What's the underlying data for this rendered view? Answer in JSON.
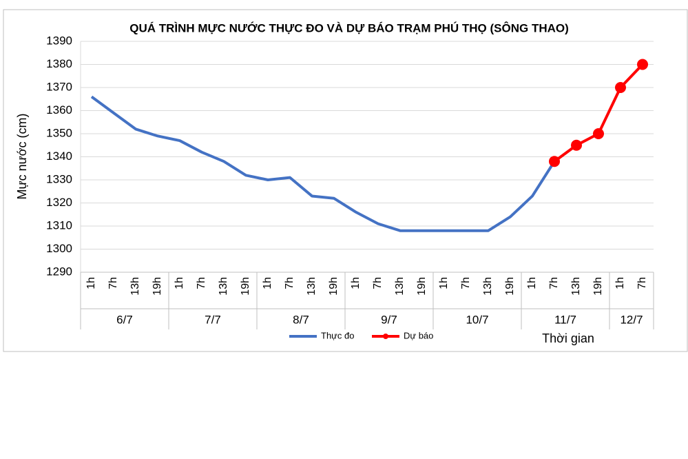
{
  "chart_data": {
    "type": "line",
    "title": "QUÁ TRÌNH MỰC NƯỚC THỰC ĐO VÀ DỰ BÁO TRẠM PHÚ THỌ (SÔNG THAO)",
    "y_label": "Mực nước (cm)",
    "x_label": "Thời gian",
    "category_groups": [
      {
        "name": "6/7",
        "categories": [
          "1h",
          "7h",
          "13h",
          "19h"
        ]
      },
      {
        "name": "7/7",
        "categories": [
          "1h",
          "7h",
          "13h",
          "19h"
        ]
      },
      {
        "name": "8/7",
        "categories": [
          "1h",
          "7h",
          "13h",
          "19h"
        ]
      },
      {
        "name": "9/7",
        "categories": [
          "1h",
          "7h",
          "13h",
          "19h"
        ]
      },
      {
        "name": "10/7",
        "categories": [
          "1h",
          "7h",
          "13h",
          "19h"
        ]
      },
      {
        "name": "11/7",
        "categories": [
          "1h",
          "7h",
          "13h",
          "19h"
        ]
      },
      {
        "name": "12/7",
        "categories": [
          "1h",
          "7h"
        ]
      }
    ],
    "series": [
      {
        "name": "Thực đo",
        "color": "#4472c4",
        "marker": false,
        "values": [
          1366,
          1359,
          1352,
          1349,
          1347,
          1342,
          1338,
          1332,
          1330,
          1331,
          1323,
          1322,
          1316,
          1311,
          1308,
          1308,
          1308,
          1308,
          1308,
          1314,
          1323,
          1338,
          null,
          null,
          null,
          null
        ]
      },
      {
        "name": "Dự báo",
        "color": "#ff0000",
        "marker": true,
        "values": [
          null,
          null,
          null,
          null,
          null,
          null,
          null,
          null,
          null,
          null,
          null,
          null,
          null,
          null,
          null,
          null,
          null,
          null,
          null,
          null,
          null,
          1338,
          1345,
          1350,
          1370,
          1380
        ]
      }
    ],
    "ylim": [
      1290,
      1390
    ],
    "yticks": [
      1290,
      1300,
      1310,
      1320,
      1330,
      1340,
      1350,
      1360,
      1370,
      1380,
      1390
    ],
    "grid": true,
    "legend": "bottom"
  }
}
